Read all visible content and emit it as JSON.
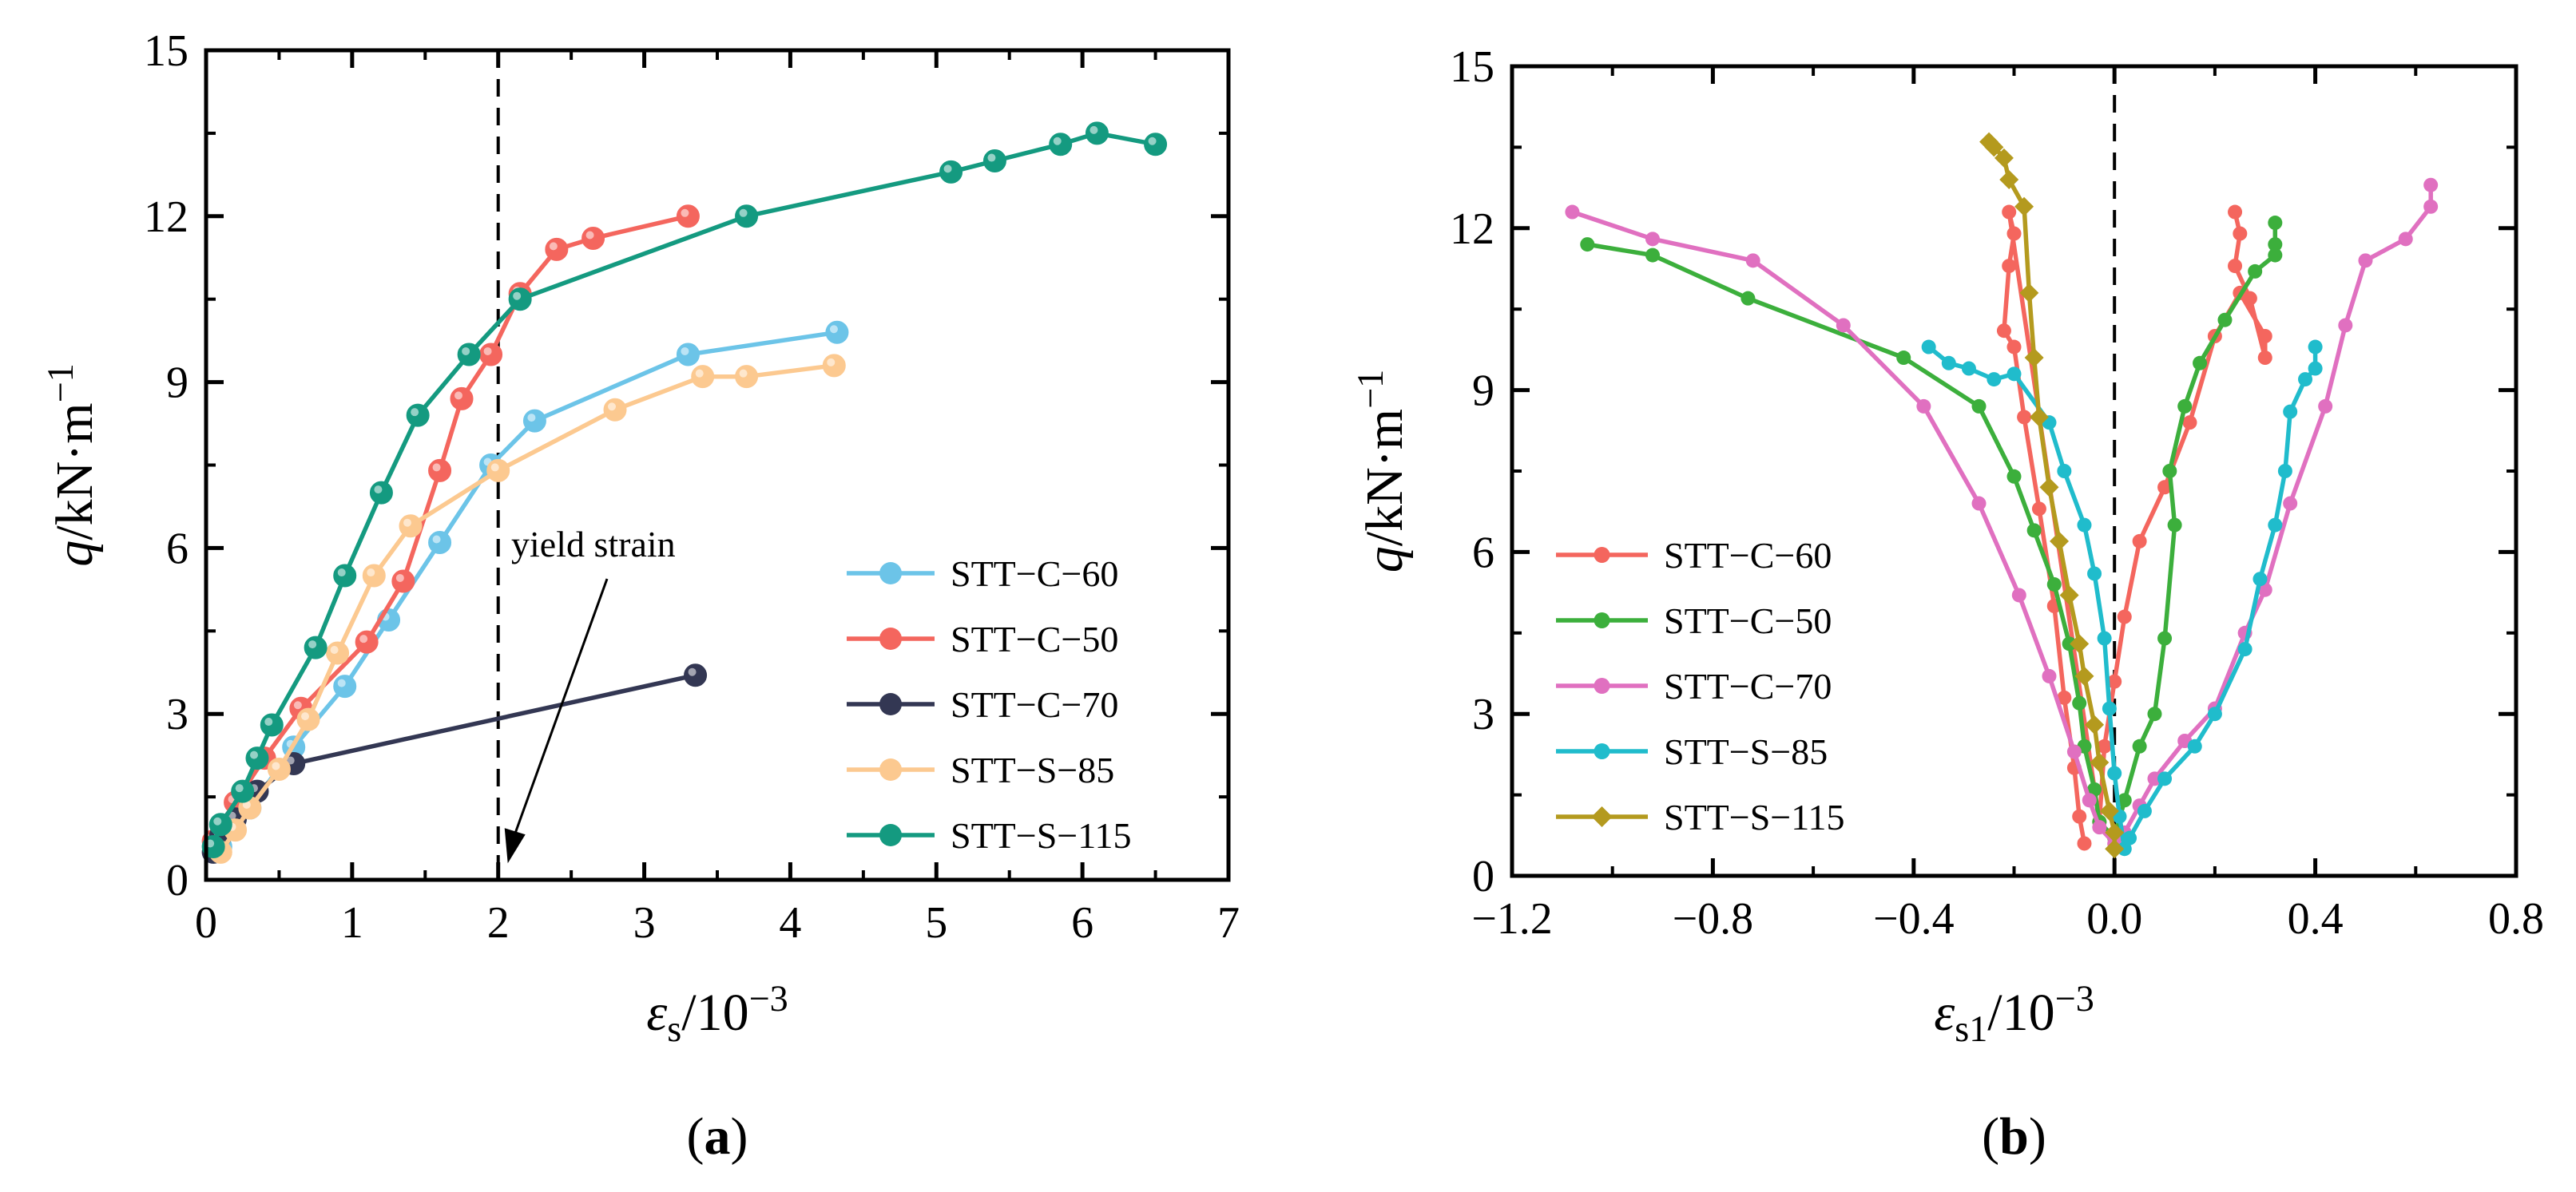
{
  "chart_data": [
    {
      "type": "line",
      "panel_label": "(a)",
      "xlabel": "εs/10−3",
      "ylabel": "q/kN·m−1",
      "xlim": [
        0,
        7
      ],
      "ylim": [
        0,
        15
      ],
      "xticks": [
        "0",
        "1",
        "2",
        "3",
        "4",
        "5",
        "6",
        "7"
      ],
      "yticks": [
        "0",
        "3",
        "6",
        "9",
        "12",
        "15"
      ],
      "legend_position": "bottom-right",
      "annotation": {
        "text": "yield strain",
        "target_x": 2,
        "target_y": 0.3
      },
      "reference_line": {
        "axis": "x",
        "value": 2,
        "style": "dashed"
      },
      "series": [
        {
          "name": "STT−C−60",
          "color": "#6cc4e8",
          "marker": "circle",
          "x": [
            0.1,
            0.3,
            0.6,
            0.95,
            1.25,
            1.6,
            1.95,
            2.25,
            3.3,
            4.32
          ],
          "y": [
            0.6,
            1.3,
            2.4,
            3.5,
            4.7,
            6.1,
            7.5,
            8.3,
            9.5,
            9.9
          ]
        },
        {
          "name": "STT−C−50",
          "color": "#f4665e",
          "marker": "circle",
          "x": [
            0.05,
            0.2,
            0.4,
            0.65,
            1.1,
            1.35,
            1.6,
            1.75,
            1.95,
            2.15,
            2.4,
            2.65,
            3.3
          ],
          "y": [
            0.7,
            1.4,
            2.2,
            3.1,
            4.3,
            5.4,
            7.4,
            8.7,
            9.5,
            10.6,
            11.4,
            11.6,
            12.0
          ]
        },
        {
          "name": "STT−C−70",
          "color": "#333753",
          "marker": "circle",
          "x": [
            0.05,
            0.1,
            0.2,
            0.35,
            0.6,
            3.35
          ],
          "y": [
            0.5,
            0.8,
            1.1,
            1.6,
            2.1,
            3.7
          ]
        },
        {
          "name": "STT−S−85",
          "color": "#fcc990",
          "marker": "circle",
          "x": [
            0.1,
            0.2,
            0.3,
            0.5,
            0.7,
            0.9,
            1.15,
            1.4,
            2.0,
            2.8,
            3.4,
            3.7,
            4.3
          ],
          "y": [
            0.5,
            0.9,
            1.3,
            2.0,
            2.9,
            4.1,
            5.5,
            6.4,
            7.4,
            8.5,
            9.1,
            9.1,
            9.3
          ]
        },
        {
          "name": "STT−S−115",
          "color": "#149a80",
          "marker": "circle",
          "x": [
            0.05,
            0.1,
            0.25,
            0.35,
            0.45,
            0.75,
            0.95,
            1.2,
            1.45,
            1.8,
            2.15,
            3.7,
            5.1,
            5.4,
            5.85,
            6.1,
            6.5
          ],
          "y": [
            0.6,
            1.0,
            1.6,
            2.2,
            2.8,
            4.2,
            5.5,
            7.0,
            8.4,
            9.5,
            10.5,
            12.0,
            12.8,
            13.0,
            13.3,
            13.5,
            13.3
          ]
        }
      ]
    },
    {
      "type": "line",
      "panel_label": "(b)",
      "xlabel": "εs1/10−3",
      "ylabel": "q/kN·m−1",
      "xlim": [
        -1.2,
        0.8
      ],
      "ylim": [
        0,
        15
      ],
      "xticks": [
        "−1.2",
        "−0.8",
        "−0.4",
        "0.0",
        "0.4",
        "0.8"
      ],
      "yticks": [
        "0",
        "3",
        "6",
        "9",
        "12",
        "15"
      ],
      "legend_position": "bottom-left",
      "reference_line": {
        "axis": "x",
        "value": 0,
        "style": "dashed"
      },
      "series": [
        {
          "name": "STT−C−60",
          "color": "#f4665e",
          "marker": "circle",
          "x": [
            -0.06,
            -0.07,
            -0.08,
            -0.1,
            -0.12,
            -0.15,
            -0.18,
            -0.2,
            -0.22,
            -0.21,
            -0.2,
            -0.21,
            -0.03,
            -0.02,
            0.0,
            0.02,
            0.05,
            0.1,
            0.15,
            0.2,
            0.25,
            0.3,
            0.3,
            0.27,
            0.24,
            0.25,
            0.24
          ],
          "y": [
            0.6,
            1.1,
            2.0,
            3.3,
            5.0,
            6.8,
            8.5,
            9.8,
            10.1,
            11.3,
            11.9,
            12.3,
            1.0,
            2.4,
            3.6,
            4.8,
            6.2,
            7.2,
            8.4,
            10.0,
            10.8,
            10.0,
            9.6,
            10.7,
            11.3,
            11.9,
            12.3
          ]
        },
        {
          "name": "STT−C−50",
          "color": "#3caf3c",
          "marker": "circle",
          "x": [
            -1.05,
            -0.92,
            -0.73,
            -0.42,
            -0.27,
            -0.2,
            -0.16,
            -0.12,
            -0.09,
            -0.07,
            -0.06,
            -0.04,
            -0.03,
            0.0,
            0.02,
            0.05,
            0.08,
            0.1,
            0.12,
            0.11,
            0.14,
            0.17,
            0.22,
            0.28,
            0.32,
            0.32,
            0.32
          ],
          "y": [
            11.7,
            11.5,
            10.7,
            9.6,
            8.7,
            7.4,
            6.4,
            5.4,
            4.3,
            3.2,
            2.4,
            1.6,
            1.0,
            0.7,
            1.4,
            2.4,
            3.0,
            4.4,
            6.5,
            7.5,
            8.7,
            9.5,
            10.3,
            11.2,
            11.5,
            11.7,
            12.1
          ]
        },
        {
          "name": "STT−C−70",
          "color": "#e070c0",
          "marker": "circle",
          "x": [
            -1.08,
            -0.92,
            -0.72,
            -0.54,
            -0.38,
            -0.27,
            -0.19,
            -0.13,
            -0.08,
            -0.05,
            -0.03,
            0.0,
            0.02,
            0.05,
            0.08,
            0.14,
            0.2,
            0.26,
            0.3,
            0.35,
            0.42,
            0.46,
            0.5,
            0.58,
            0.63,
            0.63
          ],
          "y": [
            12.3,
            11.8,
            11.4,
            10.2,
            8.7,
            6.9,
            5.2,
            3.7,
            2.3,
            1.4,
            0.9,
            0.6,
            0.8,
            1.3,
            1.8,
            2.5,
            3.1,
            4.5,
            5.3,
            6.9,
            8.7,
            10.2,
            11.4,
            11.8,
            12.4,
            12.8
          ]
        },
        {
          "name": "STT−S−85",
          "color": "#20bccc",
          "marker": "circle",
          "x": [
            -0.37,
            -0.33,
            -0.29,
            -0.24,
            -0.2,
            -0.13,
            -0.1,
            -0.06,
            -0.04,
            -0.02,
            -0.01,
            0.0,
            0.01,
            0.02,
            0.03,
            0.06,
            0.1,
            0.16,
            0.2,
            0.26,
            0.29,
            0.32,
            0.34,
            0.35,
            0.38,
            0.4,
            0.4
          ],
          "y": [
            9.8,
            9.5,
            9.4,
            9.2,
            9.3,
            8.4,
            7.5,
            6.5,
            5.6,
            4.4,
            3.1,
            1.9,
            1.1,
            0.5,
            0.7,
            1.2,
            1.8,
            2.4,
            3.0,
            4.2,
            5.5,
            6.5,
            7.5,
            8.6,
            9.2,
            9.4,
            9.8
          ]
        },
        {
          "name": "STT−S−115",
          "color": "#b49a1e",
          "marker": "diamond",
          "x": [
            -0.25,
            -0.24,
            -0.22,
            -0.21,
            -0.18,
            -0.17,
            -0.16,
            -0.15,
            -0.13,
            -0.11,
            -0.09,
            -0.07,
            -0.06,
            -0.04,
            -0.03,
            -0.01,
            0.0,
            0.0
          ],
          "y": [
            13.6,
            13.5,
            13.3,
            12.9,
            12.4,
            10.8,
            9.6,
            8.5,
            7.2,
            6.2,
            5.2,
            4.3,
            3.7,
            2.8,
            2.1,
            1.2,
            0.8,
            0.5
          ]
        }
      ]
    }
  ]
}
